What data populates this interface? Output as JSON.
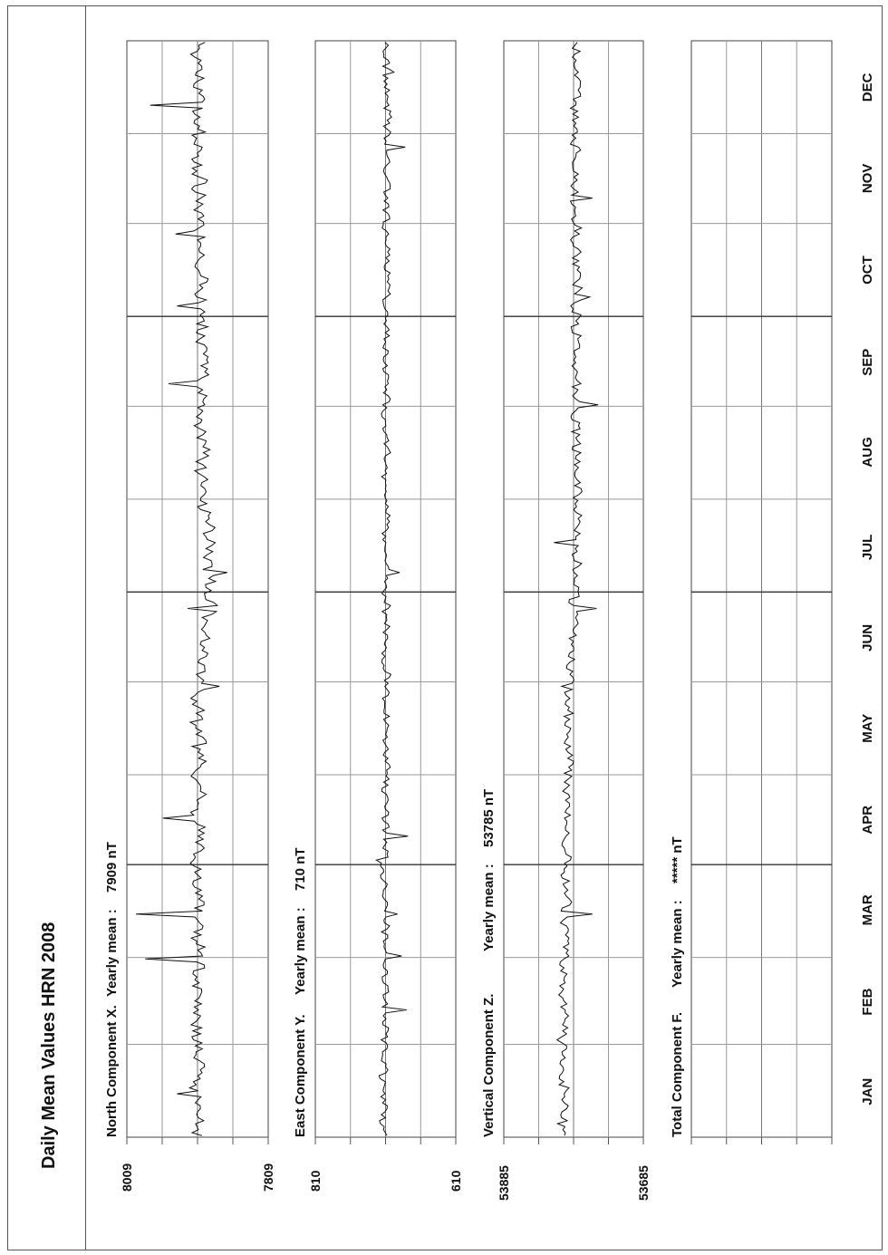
{
  "title": "Daily Mean Values HRN 2008",
  "months": [
    "JAN",
    "FEB",
    "MAR",
    "APR",
    "MAY",
    "JUN",
    "JUL",
    "AUG",
    "SEP",
    "OCT",
    "NOV",
    "DEC"
  ],
  "chart_data": [
    {
      "type": "line",
      "title": "North Component X.",
      "mean_label": "Yearly mean :",
      "mean_value": "7909 nT",
      "axis_max_label": "8009",
      "axis_min_label": "7809",
      "ylim": [
        7809,
        8009
      ],
      "mean": 7909,
      "seed": 11,
      "amp": 12,
      "trend": [
        [
          0,
          7909
        ],
        [
          150,
          7912
        ],
        [
          180,
          7928
        ],
        [
          210,
          7918
        ],
        [
          365,
          7909
        ]
      ],
      "spikes": [
        [
          14,
          7880
        ],
        [
          59,
          7835
        ],
        [
          74,
          7822
        ],
        [
          106,
          7860
        ],
        [
          150,
          7940
        ],
        [
          176,
          7895
        ],
        [
          188,
          7951
        ],
        [
          251,
          7868
        ],
        [
          277,
          7880
        ],
        [
          301,
          7878
        ],
        [
          344,
          7842
        ]
      ]
    },
    {
      "type": "line",
      "title": "East Component Y.",
      "mean_label": "Yearly mean :",
      "mean_value": "710 nT",
      "axis_max_label": "810",
      "axis_min_label": "610",
      "ylim": [
        610,
        810
      ],
      "mean": 710,
      "seed": 23,
      "amp": 7,
      "trend": [
        [
          0,
          706
        ],
        [
          60,
          710
        ],
        [
          180,
          711
        ],
        [
          365,
          712
        ]
      ],
      "spikes": [
        [
          42,
          740
        ],
        [
          60,
          733
        ],
        [
          74,
          727
        ],
        [
          92,
          697
        ],
        [
          100,
          742
        ],
        [
          188,
          730
        ],
        [
          330,
          738
        ],
        [
          355,
          722
        ]
      ]
    },
    {
      "type": "line",
      "title": "Vertical Component Z.",
      "mean_label": "Yearly mean :",
      "mean_value": "53785 nT",
      "axis_max_label": "53885",
      "axis_min_label": "53685",
      "ylim": [
        53685,
        53885
      ],
      "mean": 53785,
      "seed": 37,
      "amp": 9,
      "trend": [
        [
          0,
          53768
        ],
        [
          150,
          53780
        ],
        [
          200,
          53790
        ],
        [
          365,
          53788
        ]
      ],
      "spikes": [
        [
          4,
          53762
        ],
        [
          74,
          53812
        ],
        [
          88,
          53772
        ],
        [
          150,
          53768
        ],
        [
          176,
          53818
        ],
        [
          198,
          53757
        ],
        [
          244,
          53820
        ],
        [
          280,
          53808
        ],
        [
          313,
          53812
        ]
      ]
    },
    {
      "type": "line",
      "title": "Total Component F.",
      "mean_label": "Yearly mean :",
      "mean_value": "***** nT",
      "axis_max_label": "",
      "axis_min_label": "",
      "ylim": [
        0,
        1
      ],
      "mean": null,
      "seed": 0,
      "amp": 0,
      "trend": [],
      "spikes": []
    }
  ]
}
